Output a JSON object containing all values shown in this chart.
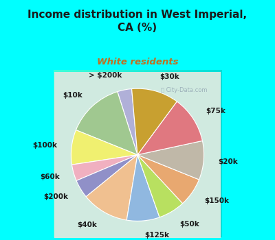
{
  "title": "Income distribution in West Imperial,\nCA (%)",
  "subtitle": "White residents",
  "title_color": "#1a1a1a",
  "subtitle_color": "#c07020",
  "background_color": "#00ffff",
  "chart_bg_gradient_left": "#c8e8d0",
  "chart_bg_gradient_right": "#e8f8f8",
  "labels": [
    "> $200k",
    "$10k",
    "$100k",
    "$60k",
    "$200k",
    "$40k",
    "$125k",
    "$50k",
    "$150k",
    "$20k",
    "$75k",
    "$30k"
  ],
  "values": [
    3.5,
    14.0,
    8.5,
    4.0,
    4.5,
    11.5,
    8.0,
    6.5,
    7.0,
    9.5,
    11.5,
    11.5
  ],
  "colors": [
    "#b0b0d8",
    "#a0c890",
    "#f0f070",
    "#f0b0c0",
    "#9090c8",
    "#f0c090",
    "#90b8e0",
    "#b8e060",
    "#e8a870",
    "#c0b8a8",
    "#e07880",
    "#c8a030"
  ],
  "label_color": "#1a1a1a",
  "startangle": 95,
  "label_distance": 1.22,
  "label_fontsize": 7.5
}
